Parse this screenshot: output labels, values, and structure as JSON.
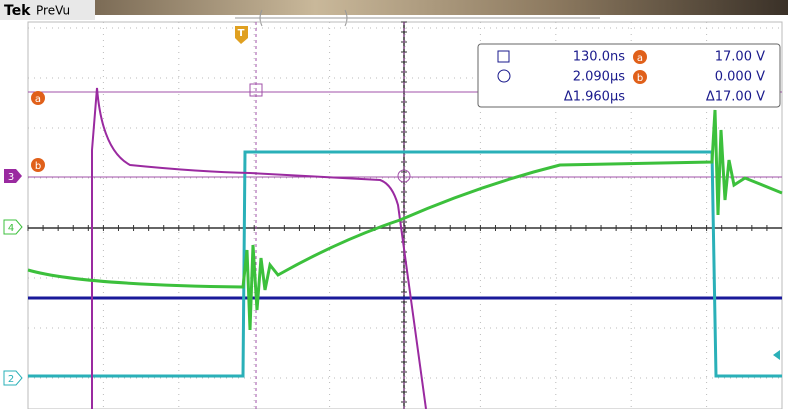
{
  "header": {
    "brand": "Tek",
    "mode": "PreVu"
  },
  "readout": {
    "cursor1_time": "130.0ns",
    "cursor_a_voltage": "17.00 V",
    "cursor2_time": "2.090µs",
    "cursor_b_voltage": "0.000 V",
    "delta_time": "Δ1.960µs",
    "delta_voltage": "Δ17.00 V"
  },
  "markers": {
    "cursor_a": "a",
    "cursor_b": "b",
    "channel_3": "3",
    "channel_4": "4",
    "channel_2": "2",
    "trigger": "T"
  }
}
